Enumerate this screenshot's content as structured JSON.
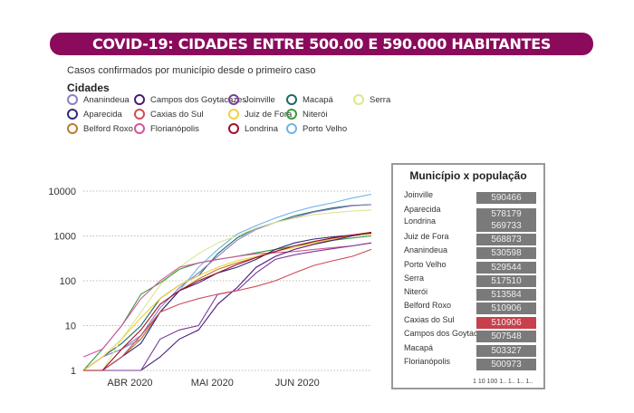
{
  "title": "COVID-19: CIDADES ENTRE 500.00 E 590.000 HABITANTES",
  "subtitle": "Casos confirmados por município desde o primeiro caso",
  "legend": {
    "title": "Cidades",
    "items": [
      {
        "name": "Ananindeua",
        "color": "#8a80c2"
      },
      {
        "name": "Aparecida",
        "color": "#2e2a7a"
      },
      {
        "name": "Belford Roxo",
        "color": "#c07a2a"
      },
      {
        "name": "Campos dos Goytacazes",
        "color": "#4a1a7a"
      },
      {
        "name": "Caxias do Sul",
        "color": "#d04a55"
      },
      {
        "name": "Florianópolis",
        "color": "#d055a0"
      },
      {
        "name": "Joinville",
        "color": "#7a3a9a"
      },
      {
        "name": "Juiz de Fora",
        "color": "#f0d040"
      },
      {
        "name": "Londrina",
        "color": "#a0102a"
      },
      {
        "name": "Macapá",
        "color": "#1a6a6a"
      },
      {
        "name": "Niterói",
        "color": "#3a9a3a"
      },
      {
        "name": "Porto Velho",
        "color": "#70b4e6"
      },
      {
        "name": "Serra",
        "color": "#d8e890"
      }
    ]
  },
  "chart_data": [
    {
      "type": "line",
      "yscale": "log",
      "ylim": [
        1,
        10000
      ],
      "yticks": [
        "1",
        "10",
        "100",
        "1000",
        "10000"
      ],
      "xticks": [
        "ABR 2020",
        "MAI 2020",
        "JUN 2020"
      ],
      "x": [
        "2020-03-15",
        "2020-03-22",
        "2020-03-29",
        "2020-04-05",
        "2020-04-12",
        "2020-04-19",
        "2020-04-26",
        "2020-05-03",
        "2020-05-10",
        "2020-05-17",
        "2020-05-24",
        "2020-05-31",
        "2020-06-07",
        "2020-06-14",
        "2020-06-21",
        "2020-06-28"
      ],
      "grid": true,
      "series": [
        {
          "name": "Porto Velho",
          "values": [
            1,
            1,
            3,
            5,
            20,
            60,
            200,
            500,
            1100,
            1700,
            2500,
            3500,
            4500,
            5500,
            7000,
            8500
          ]
        },
        {
          "name": "Macapá",
          "values": [
            1,
            2,
            4,
            10,
            40,
            80,
            130,
            400,
            900,
            1500,
            2000,
            2800,
            3500,
            4200,
            4800,
            5000
          ]
        },
        {
          "name": "Ananindeua",
          "values": [
            1,
            2,
            3,
            6,
            25,
            70,
            150,
            350,
            800,
            1400,
            2000,
            2600,
            3400,
            4000,
            4700,
            5000
          ]
        },
        {
          "name": "Serra",
          "values": [
            1,
            1,
            5,
            20,
            80,
            200,
            400,
            700,
            1000,
            1500,
            2000,
            2500,
            3000,
            3300,
            3600,
            3800
          ]
        },
        {
          "name": "Niterói",
          "values": [
            1,
            3,
            10,
            50,
            90,
            180,
            250,
            300,
            350,
            420,
            500,
            600,
            700,
            800,
            900,
            1000
          ]
        },
        {
          "name": "Florianópolis",
          "values": [
            2,
            3,
            10,
            40,
            100,
            200,
            250,
            300,
            350,
            400,
            420,
            450,
            500,
            550,
            600,
            700
          ]
        },
        {
          "name": "Juiz de Fora",
          "values": [
            1,
            2,
            5,
            15,
            40,
            80,
            130,
            200,
            280,
            350,
            450,
            550,
            700,
            850,
            1000,
            1100
          ]
        },
        {
          "name": "Belford Roxo",
          "values": [
            1,
            1,
            2,
            5,
            20,
            60,
            110,
            180,
            250,
            330,
            450,
            600,
            750,
            900,
            1050,
            1200
          ]
        },
        {
          "name": "Campos dos Goytacazes",
          "values": [
            1,
            1,
            1,
            1,
            2,
            5,
            8,
            30,
            70,
            200,
            350,
            500,
            650,
            800,
            1000,
            1200
          ]
        },
        {
          "name": "Aparecida",
          "values": [
            1,
            1,
            2,
            4,
            20,
            60,
            90,
            150,
            200,
            300,
            500,
            700,
            850,
            950,
            1050,
            1150
          ]
        },
        {
          "name": "Joinville",
          "values": [
            1,
            1,
            1,
            1,
            5,
            8,
            10,
            50,
            60,
            150,
            300,
            380,
            450,
            520,
            600,
            700
          ]
        },
        {
          "name": "Caxias do Sul",
          "values": [
            1,
            1,
            2,
            6,
            20,
            30,
            40,
            50,
            60,
            75,
            100,
            150,
            220,
            280,
            350,
            500
          ]
        },
        {
          "name": "Londrina",
          "values": [
            1,
            1,
            3,
            8,
            30,
            60,
            100,
            150,
            230,
            330,
            450,
            600,
            750,
            900,
            1050,
            1200
          ]
        }
      ]
    },
    {
      "type": "bar",
      "title": "Município x população",
      "orientation": "horizontal",
      "xscale": "log",
      "xtick_labels": "1 10 100 1.. 1.. 1.. 1..",
      "categories": [
        "Joinville",
        "Aparecida",
        "Londrina",
        "Juiz de Fora",
        "Ananindeua",
        "Porto Velho",
        "Serra",
        "Niterói",
        "Belford Roxo",
        "Caxias do Sul",
        "Campos dos Goytacazes",
        "Macapá",
        "Florianópolis"
      ],
      "values": [
        "590466",
        "578179",
        "569733",
        "568873",
        "530598",
        "529544",
        "517510",
        "513584",
        "510906",
        "510906",
        "507548",
        "503327",
        "500973"
      ],
      "highlight": "Caxias do Sul",
      "bar_color": "#7a7a7a",
      "highlight_color": "#c8404c"
    }
  ]
}
